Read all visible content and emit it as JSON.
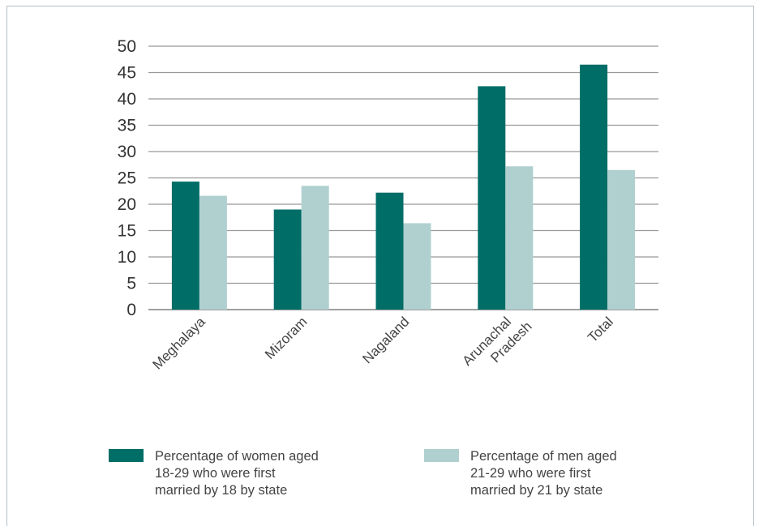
{
  "chart_data": {
    "type": "bar",
    "categories": [
      "Meghalaya",
      "Mizoram",
      "Nagaland",
      "Arunachal\nPradesh",
      "Total"
    ],
    "series": [
      {
        "name": "Percentage of women aged\n18-29 who were first\nmarried by 18 by state",
        "color": "#006d67",
        "values": [
          24.3,
          19.0,
          22.2,
          42.4,
          46.5
        ]
      },
      {
        "name": "Percentage of men aged\n21-29 who were first\nmarried by 21 by state",
        "color": "#b0d0d0",
        "values": [
          21.6,
          23.5,
          16.4,
          27.2,
          26.5
        ]
      }
    ],
    "yticks": [
      0,
      5,
      10,
      15,
      20,
      25,
      30,
      35,
      40,
      45,
      50
    ],
    "ylim": [
      0,
      50
    ],
    "grid": true,
    "legend_position": "bottom"
  }
}
